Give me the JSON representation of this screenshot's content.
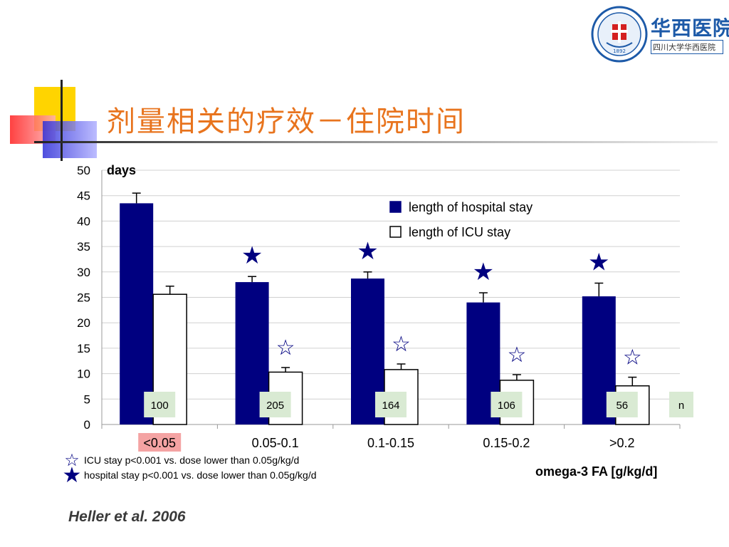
{
  "slide": {
    "title": "剂量相关的疗效－住院时间",
    "citation": "Heller  et al.  2006",
    "logo": {
      "cn_name": "华西医院",
      "subtitle": "四川大学华西医院",
      "year": "1892"
    }
  },
  "footnotes": [
    {
      "symbol": "☆",
      "text": "ICU stay p<0.001 vs. dose lower than 0.05g/kg/d"
    },
    {
      "symbol": "★",
      "text": "hospital stay p<0.001 vs. dose lower than 0.05g/kg/d"
    }
  ],
  "chart_data": {
    "type": "bar",
    "ylabel": "days",
    "xlabel": "omega-3 FA [g/kg/d]",
    "ylim": [
      0,
      50
    ],
    "yticks": [
      0,
      5,
      10,
      15,
      20,
      25,
      30,
      35,
      40,
      45,
      50
    ],
    "grid": true,
    "legend_position": "top-right",
    "categories": [
      "<0.05",
      "0.05-0.1",
      "0.1-0.15",
      "0.15-0.2",
      ">0.2"
    ],
    "highlighted_category": "<0.05",
    "series": [
      {
        "name": "length of hospital stay",
        "color": "#000080",
        "fill": "solid",
        "values": [
          43.5,
          28.0,
          28.7,
          24.0,
          25.2
        ],
        "errors": [
          2.0,
          1.1,
          1.3,
          1.9,
          2.6
        ],
        "significance": [
          false,
          true,
          true,
          true,
          true
        ],
        "marker": "★"
      },
      {
        "name": "length of ICU stay",
        "color": "#ffffff",
        "fill": "outline",
        "values": [
          25.6,
          10.3,
          10.8,
          8.7,
          7.6
        ],
        "errors": [
          1.6,
          0.9,
          1.1,
          1.1,
          1.7
        ],
        "significance": [
          false,
          true,
          true,
          true,
          true
        ],
        "marker": "☆"
      }
    ],
    "n_label": "n",
    "n_values": [
      "100",
      "205",
      "164",
      "106",
      "56"
    ]
  }
}
